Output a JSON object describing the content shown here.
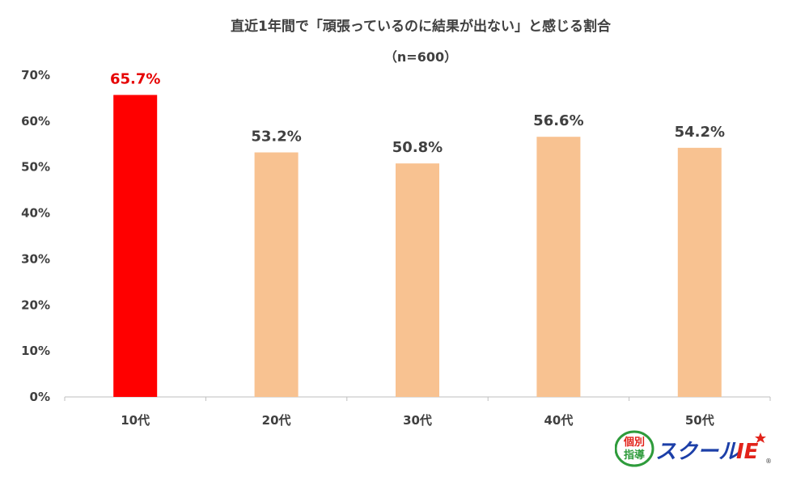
{
  "chart_data": {
    "type": "bar",
    "title": "直近1年間で「頑張っているのに結果が出ない」と感じる割合",
    "subtitle": "（n=600）",
    "categories": [
      "10代",
      "20代",
      "30代",
      "40代",
      "50代"
    ],
    "values": [
      65.7,
      53.2,
      50.8,
      56.6,
      54.2
    ],
    "data_labels": [
      "65.7%",
      "53.2%",
      "50.8%",
      "56.6%",
      "54.2%"
    ],
    "ylim": [
      0,
      70
    ],
    "yticks": [
      "0%",
      "10%",
      "20%",
      "30%",
      "40%",
      "50%",
      "60%",
      "70%"
    ],
    "grid": false,
    "highlight_index": 0,
    "colors": {
      "highlight": "#ff0000",
      "default": "#f8c291",
      "text": "#404040",
      "highlight_label": "#e60000",
      "axis": "#bfbfbf"
    }
  },
  "logo": {
    "line1": "個別",
    "line2": "指導",
    "brand": "スクール",
    "suffix": "IE",
    "mark": "®",
    "colors": {
      "green": "#2e9b3b",
      "blue": "#1c3fa8",
      "red": "#e2231a"
    }
  }
}
